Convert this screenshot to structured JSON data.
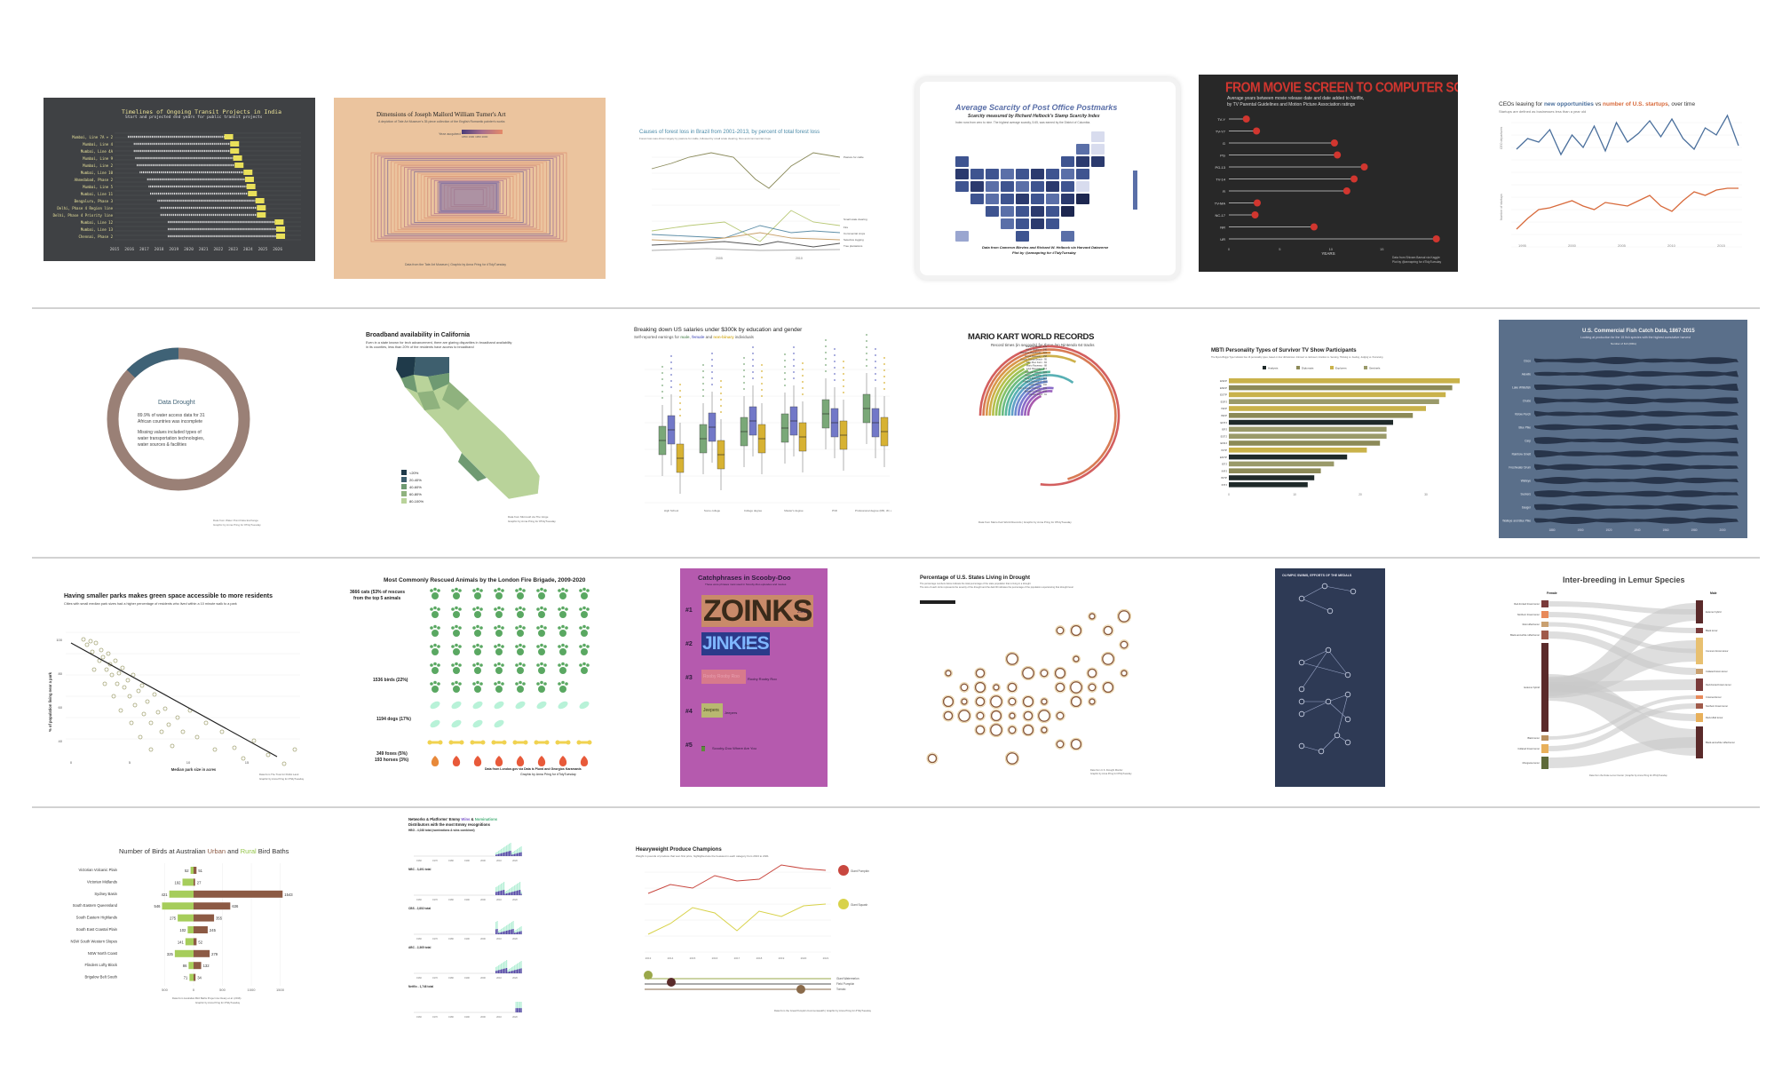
{
  "gallery": {
    "t1": {
      "title": "Timelines of Ongoing Transit Projects in India",
      "subtitle": "Start and projected end years for public transit projects",
      "rows": [
        "Mumbai, Line 7A + 2",
        "Mumbai, Line 4",
        "Mumbai, Line 4A",
        "Mumbai, Line 9",
        "Mumbai, Line 2",
        "Mumbai, Line 10",
        "Ahmedabad, Phase 2",
        "Mumbai, Line 5",
        "Mumbai, Line 11",
        "Bengaluru, Phase 3",
        "Delhi, Phase 4 Region line",
        "Delhi, Phase 4 Priority line",
        "Mumbai, Line 12",
        "Mumbai, Line 13",
        "Chennai, Phase 2"
      ],
      "years": [
        "2015",
        "2016",
        "2017",
        "2018",
        "2019",
        "2020",
        "2021",
        "2022",
        "2023",
        "2024",
        "2025",
        "2026"
      ]
    },
    "t2": {
      "title": "Dimensions of Joseph Mallord William Turner's Art",
      "subtitle": "A depiction of Tate Art Museum's 35 piece collection of the English Romantic painter's works",
      "legend_title": "Year acquired",
      "legend_labels": [
        "1850",
        "1900",
        "1950",
        "2000"
      ],
      "caption": "Data from the Tate Art Museum | Graphic by Anna Pring for #TidyTuesday"
    },
    "t3": {
      "title": "Causes of forest loss in Brazil from 2001-2013, by percent of total forest loss",
      "subtitle": "Forest loss was driven largely by pasture for cattle, followed by small scale clearing, fires and commercial crops",
      "labels": [
        "Pasture for cattle",
        "Small scale clearing",
        "Fire",
        "Commercial crops",
        "Selective logging",
        "Tree plantations"
      ],
      "years": [
        "2005",
        "2010"
      ]
    },
    "t4": {
      "title": "Average Scarcity of Post Office Postmarks",
      "subtitle": "Scarcity measured by Richard Helbock's Stamp Scarcity Index",
      "note": "Index runs from zero to nine. The highest average scarcity, 5.65, was earned by the District of Columbia.",
      "caption": "Data from Cameron Blevins and Richard W. Helbock via Harvard Dataverse",
      "caption2": "Plot by @annapring for #TidyTuesday"
    },
    "t5": {
      "title": "FROM MOVIE SCREEN TO COMPUTER SCREEN",
      "subtitle": "Average years between movie release date and date added to Netflix,",
      "subtitle2": "by TV Parental Guidelines and Motion Picture Association ratings",
      "ratings": [
        "TV-Y",
        "TV-Y7",
        "G",
        "PG",
        "PG-13",
        "TV-14",
        "R",
        "TV-MA",
        "NC-17",
        "NR",
        "UR"
      ],
      "years_label": "YEARS",
      "ticks": [
        "0",
        "5",
        "10",
        "15"
      ],
      "caption": "Data from Shivam Bansal via Kaggle",
      "caption2": "Plot by @annapring for #TidyTuesday"
    },
    "t6": {
      "title_prefix": "CEOs leaving for ",
      "title_a": "new opportunities",
      "title_mid": " vs ",
      "title_b": "number of U.S. startups",
      "title_suffix": ", over time",
      "subtitle": "Startups are defined as businesses less than a year old",
      "ylabel_a": "CEO departures",
      "ylabel_b": "Number of startups",
      "ticks": [
        "1995",
        "2000",
        "2005",
        "2010",
        "2015"
      ]
    },
    "t7": {
      "title": "Data Drought",
      "line1": "89.9% of water access data for 31",
      "line2": "African countries was incomplete",
      "line3": "Missing values included types of",
      "line4": "water transportation technologies,",
      "line5": "water sources & facilities",
      "caption": "Data from Water Point Data Exchange",
      "caption2": "Graphic by Anna Pring for #TidyTuesday"
    },
    "t8": {
      "title": "Broadband availability in California",
      "subtitle": "Even in a state known for tech advancement, there are glaring disparities in broadband availability",
      "subtitle2": "in its counties, less than 20% of the residents have access to broadband",
      "legend": [
        "<20%",
        "20-40%",
        "40-60%",
        "60-80%",
        "80-100%"
      ],
      "caption": "Data from Microsoft via The Verge",
      "caption2": "Graphic by Anna Pring for #TidyTuesday"
    },
    "t9": {
      "title": "Breaking down US salaries under $300k by education and gender",
      "sub_prefix": "Self-reported earnings for ",
      "sub_male": "male",
      "sub_sep": ", ",
      "sub_female": "female",
      "sub_and": " and ",
      "sub_nb": "non-binary",
      "sub_suffix": " individuals",
      "categories": [
        "High School",
        "Some college",
        "College degree",
        "Master's degree",
        "PhD",
        "Professional degree (MD, JD, etc.)"
      ],
      "yticks": [
        "100k",
        "200k",
        "300k"
      ]
    },
    "t10": {
      "title": "MARIO KART WORLD RECORDS",
      "subtitle": "Record times (in seconds) for three-lap Nintendo 64 tracks",
      "tracks": [
        "Rainbow Road - 378",
        "Wario Stadium - 346",
        "Banshee Boardwalk - 124",
        "Royal Raceway - 158",
        "Koopa Troopa Beach - 95",
        "Moo Moo Farm - 84",
        "Mario Raceway - 88",
        "Luigi Raceway - 114",
        "Kalimari Desert - 124",
        "Toad's Turnpike - 171",
        "Choco Mountain - 117",
        "Frappe Snowland - 118",
        "Yoshi Valley - 102",
        "D.K.'s Jungle Parkway - 134",
        "Bowser's Castle - 132",
        "Sherbet Land - 91"
      ],
      "caption": "Data from Mario Kart World Records | Graphic by Anna Pring for #TidyTuesday"
    },
    "t11": {
      "title": "MBTI Personality Types of Survivor TV Show Participants",
      "subtitle": "The Myers-Briggs Type Indicator has 16 personality types, based on four dichotomies: Introvert vs. Extrovert, Intuition vs. Sensing, Thinking vs. Feeling, Judging vs. Perceiving",
      "legend": [
        "Analysts",
        "Diplomats",
        "Explorers",
        "Sentinels"
      ],
      "types": [
        "ESFP",
        "ENFP",
        "ESTP",
        "ESFJ",
        "ISFP",
        "INFP",
        "ENTJ",
        "ISFJ",
        "ESTJ",
        "ENFJ",
        "ISTP",
        "ENTP",
        "ISTJ",
        "INFJ",
        "INTP",
        "INTJ"
      ],
      "values": [
        38,
        34,
        33,
        32,
        30,
        28,
        25,
        24,
        24,
        23,
        21,
        18,
        16,
        14,
        13,
        12
      ],
      "ticks": [
        "0",
        "10",
        "20",
        "30"
      ]
    },
    "t12": {
      "title": "U.S. Commercial Fish Catch Data, 1867-2015",
      "subtitle": "Looking at production for the 15 fish species with the highest cumulative harvest",
      "legend": "Number of fish (000s)",
      "species": [
        "Cisco",
        "Alewife",
        "Lake Whitefish",
        "Chubs",
        "Yellow Perch",
        "Blue Pike",
        "Carp",
        "Rainbow Smelt",
        "Freshwater Drum",
        "Walleye",
        "Suckers",
        "Sauger",
        "Walleye and Blue Pike"
      ],
      "years": [
        "1880",
        "1900",
        "1920",
        "1940",
        "1960",
        "1980",
        "2000"
      ]
    },
    "t13": {
      "title": "Having smaller parks makes green space accessible to more residents",
      "subtitle": "Cities with small median park sizes had a higher percentage of residents who lived within a 10 minute walk to a park",
      "ylabel": "% of population living near a park",
      "xlabel": "Median park size in acres",
      "yticks": [
        "100",
        "80",
        "60",
        "40"
      ],
      "xticks": [
        "0",
        "5",
        "10",
        "15"
      ],
      "caption": "Data from The Trust for Public Land",
      "caption2": "Graphic by Anna Pring for #TidyTuesday"
    },
    "t14": {
      "title": "Most Commonly Rescued Animals by the London Fire Brigade, 2009-2020",
      "row1a": "3666 cats (53% of rescues",
      "row1b": "from the top 5 animals",
      "row2": "1536 birds (22%)",
      "row3": "1194 dogs (17%)",
      "row4a": "349 foxes (5%)",
      "row4b": "193 horses (3%)",
      "caption": "Data from London.gov via Data is Plural and Georgios Karamanis",
      "caption2": "Graphic by Anna Pring for #TidyTuesday"
    },
    "t15": {
      "title": "Catchphrases in Scooby-Doo",
      "subtitle": "These were phrases most used in Scooby-Doo episodes and movies",
      "ranks": [
        "#1",
        "#2",
        "#3",
        "#4",
        "#5"
      ],
      "words": [
        "ZOINKS",
        "JINKIES",
        "Rooby Rooby Roo",
        "Jeepers",
        "Scooby-Doo Where Are You"
      ],
      "labels": [
        "Zoinks",
        "Jinkies",
        "Rooby Rooby Roo",
        "Jeepers",
        "Scooby-Doo Where Are You"
      ]
    },
    "t16": {
      "title": "Percentage of U.S. States Living in Drought",
      "subtitle": "The percentage numbers below indicate the total percentage of the state population that is living in a drought",
      "subtitle2": "The size of each circle represents the severity of the drought and the dark fill indicates the percentage of the population experiencing that drought level",
      "caption": "Data from U.S. Drought Monitor",
      "caption2": "Graphic by Anna Pring for #TidyTuesday"
    },
    "t17": {
      "title": "OLYMPIC SWIMS, EFFORTS OF THE MEDALS"
    },
    "t18": {
      "title": "Inter-breeding in Lemur Species",
      "left_title": "Female",
      "right_title": "Male",
      "left": [
        "Red-fronted brown lemur",
        "Northern brown lemur",
        "Red-ruffed lemur",
        "Black-and-white ruffed lemur",
        "Eulemur hybrid",
        "Black lemur",
        "Collared brown lemur",
        "Mongoose lemur"
      ],
      "right": [
        "Eulemur hybrid",
        "Black lemur",
        "Common brown lemur",
        "Collared brown lemur",
        "Red-fronted brown lemur",
        "Crowned lemur",
        "Northern brown lemur",
        "Red-ruffed lemur",
        "Black-and-white ruffed lemur"
      ],
      "caption": "Data from the Duke Lemur Center | Graphic by Anna Pring for #TidyTuesday"
    },
    "t19": {
      "title_prefix": "Number of Birds at Australian ",
      "title_urban": "Urban",
      "title_and": " and ",
      "title_rural": "Rural",
      "title_suffix": " Bird Baths",
      "regions": [
        "Victorian Volcanic Plain",
        "Victorian Midlands",
        "Sydney Basin",
        "South Eastern Queensland",
        "South Eastern Highlands",
        "South East Coastal Plain",
        "NSW South Western Slopes",
        "NSW North Coast",
        "Flinders Lofty Block",
        "Brigalow Belt South"
      ],
      "urban": [
        52,
        192,
        421,
        546,
        275,
        102,
        141,
        325,
        86,
        71
      ],
      "rural": [
        51,
        27,
        1543,
        636,
        355,
        245,
        52,
        279,
        132,
        34
      ],
      "urban_labels": [
        "52",
        "192",
        "421",
        "546",
        "275",
        "102",
        "141",
        "325",
        "86",
        "71"
      ],
      "rural_labels": [
        "51",
        "27",
        "1543",
        "636",
        "355",
        "245",
        "52",
        "279",
        "132",
        "34"
      ],
      "ticks": [
        "500",
        "0",
        "500",
        "1000",
        "1500"
      ],
      "caption": "Data from Australian Bird Baths Project via Cleary et al. (2016)",
      "caption2": "Graphic by Anna Pring for #TidyTuesday"
    },
    "t20": {
      "title_prefix": "Networks & Platforms' Emmy ",
      "title_wins": "Wins",
      "title_and": " & ",
      "title_noms": "Nominations",
      "title2": "Distributors with the most Emmy recognitions",
      "panels": [
        "HBO - 4,038 total (nominations & wins combined)",
        "NBC - 3,491 total",
        "CBS - 2,802 total",
        "ABC - 2,365 total",
        "Netflix - 1,746 total"
      ],
      "years": [
        "1960",
        "1970",
        "1980",
        "1990",
        "2000",
        "2010",
        "2020"
      ]
    },
    "t21": {
      "title": "Heavyweight Produce Champions",
      "subtitle": "Weight in pounds of produce that won first prize, highlighted are the heaviest in each category from 2013 to 2021",
      "labels": [
        "Giant Pumpkin",
        "Giant Squash",
        "Giant Watermelon",
        "Field Pumpkin",
        "Tomato"
      ],
      "years": [
        "2013",
        "2014",
        "2015",
        "2016",
        "2017",
        "2018",
        "2019",
        "2020",
        "2021"
      ],
      "caption": "Data from the Great Pumpkin Commonwealth | Graphic by Anna Pring for #TidyTuesday"
    }
  }
}
